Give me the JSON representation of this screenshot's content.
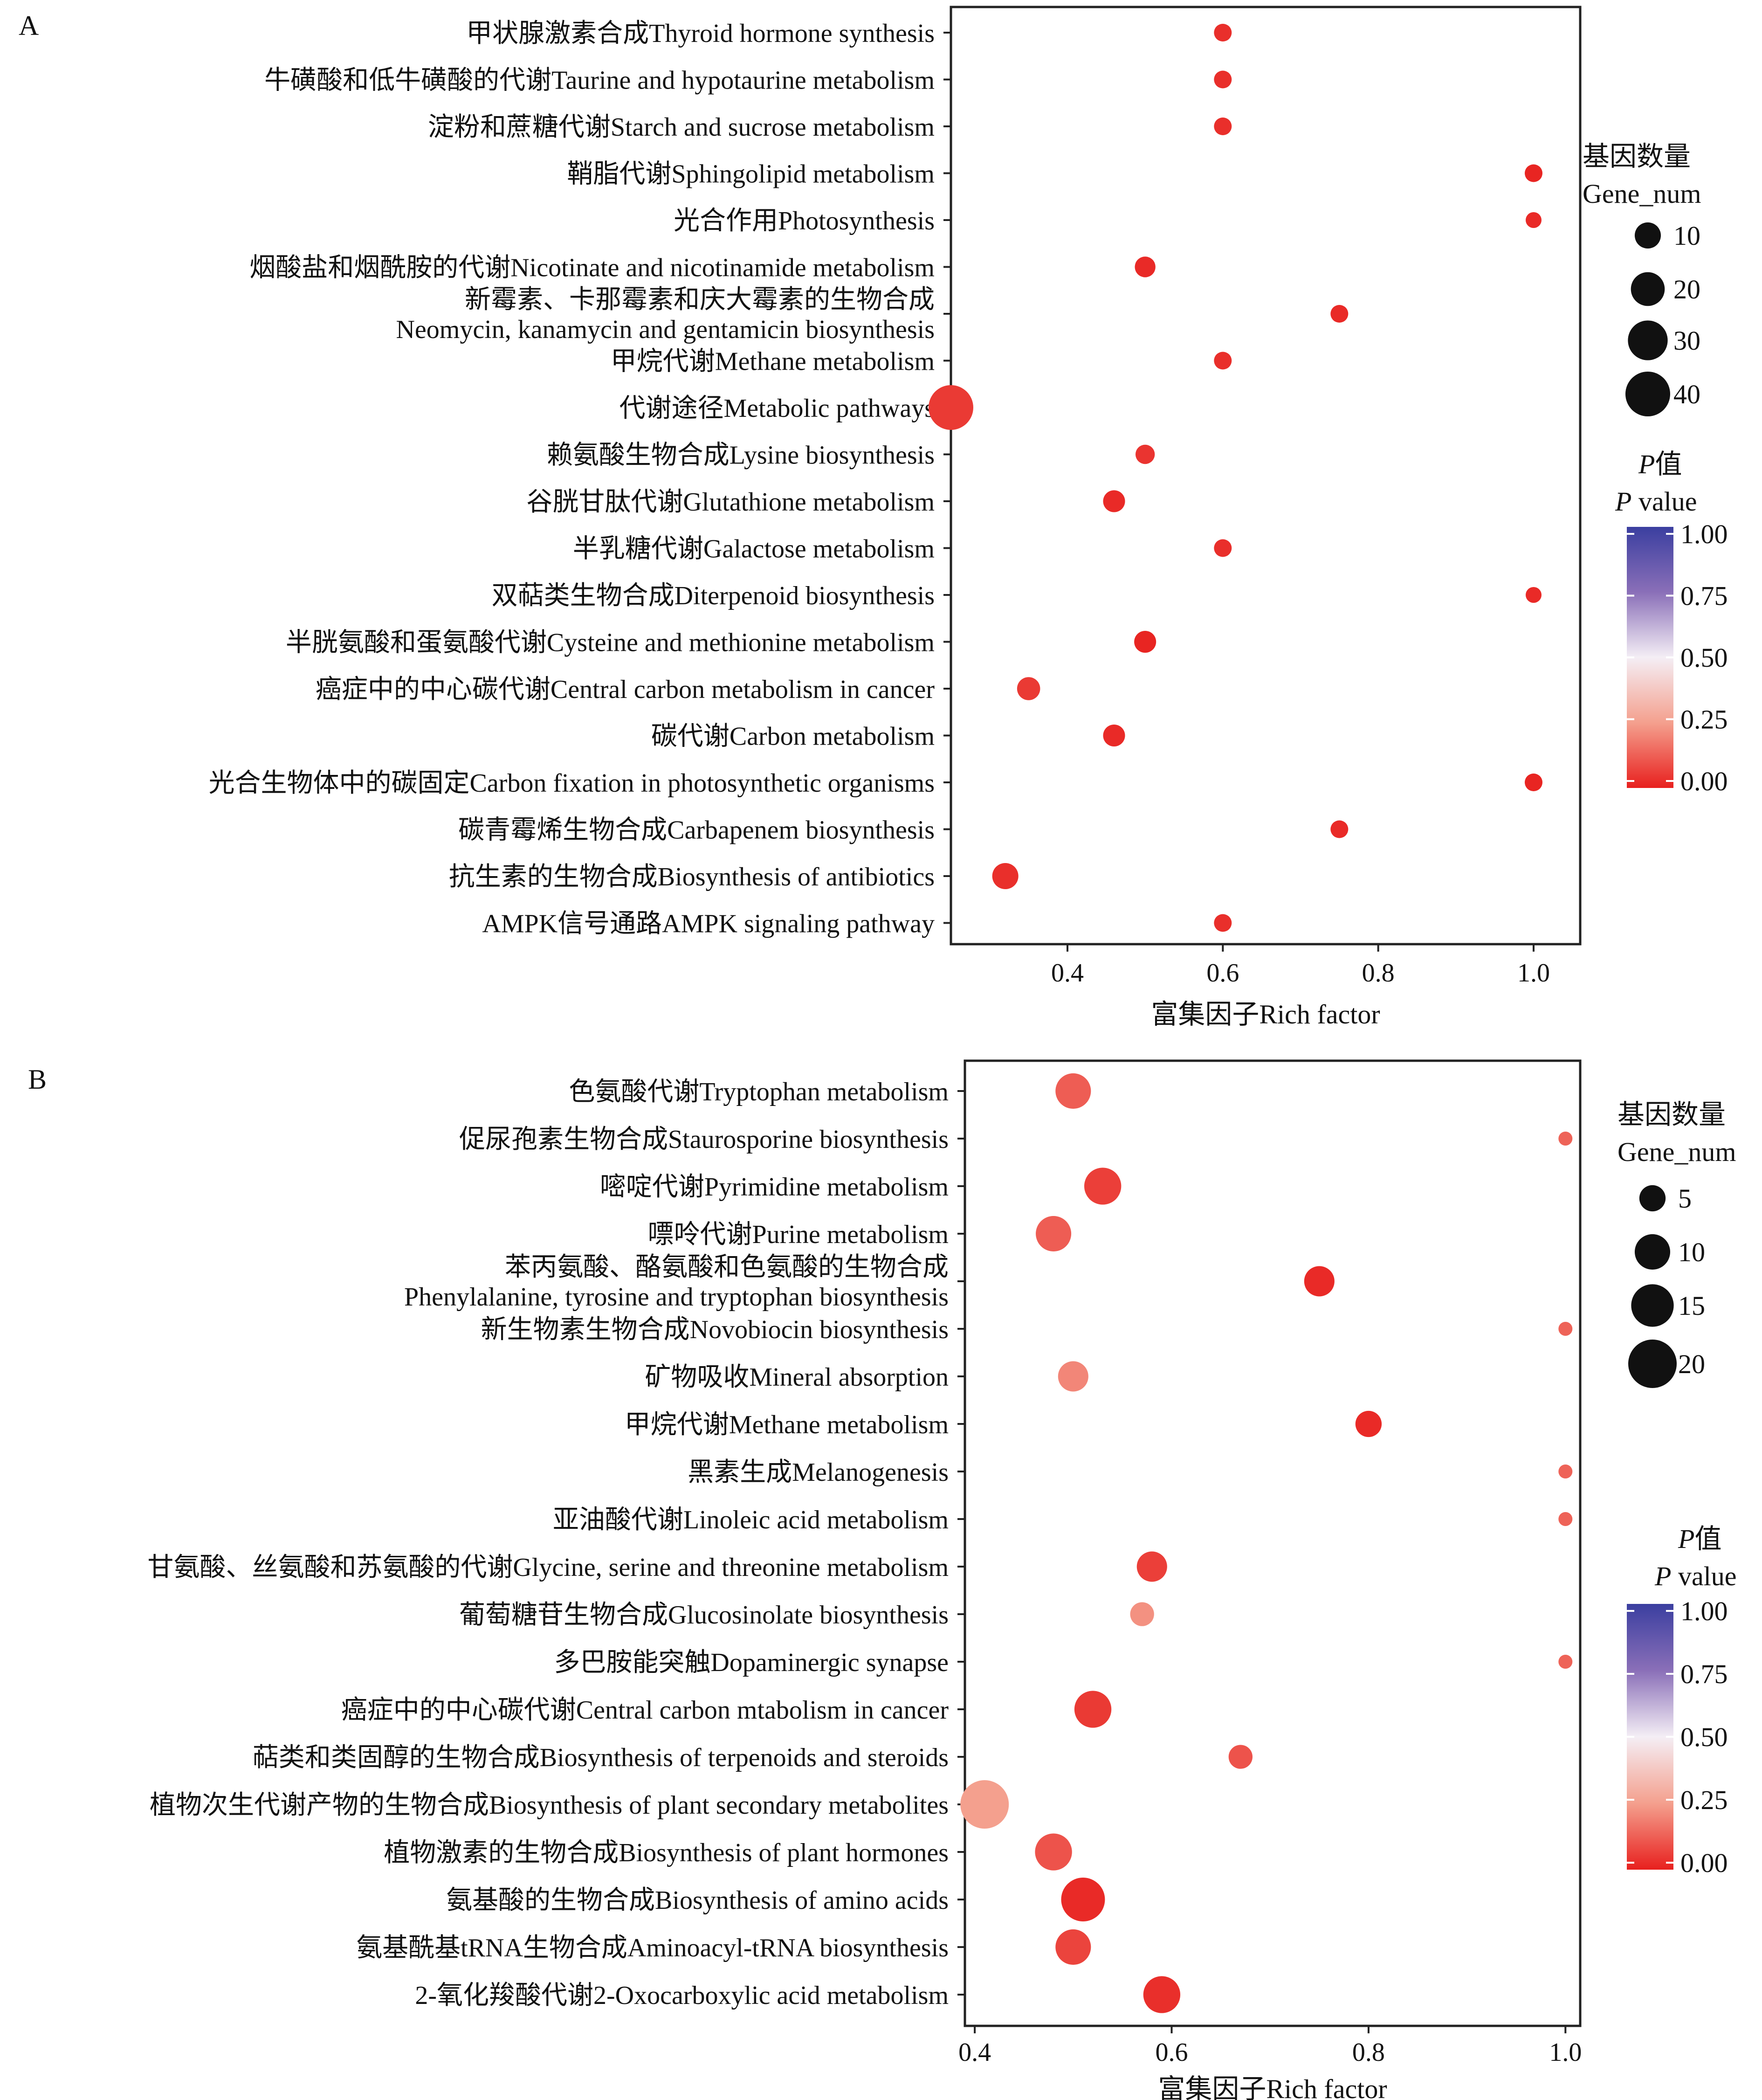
{
  "chart_data": [
    {
      "type": "scatter",
      "panel_label": "A",
      "xlabel": "富集因子Rich factor",
      "ylabel": "",
      "xlim": [
        0.25,
        1.06
      ],
      "xticks": [
        "0.4",
        "0.6",
        "0.8",
        "1.0"
      ],
      "grid": false,
      "size_legend": {
        "title_zh": "基因数量",
        "title_en": "Gene_num",
        "values": [
          "10",
          "20",
          "30",
          "40"
        ]
      },
      "color_legend": {
        "title_zh": "P值",
        "title_en_italic": "P",
        "title_en_rest": " value",
        "ticks": [
          "1.00",
          "0.75",
          "0.50",
          "0.25",
          "0.00"
        ]
      },
      "points": [
        {
          "label": "甲状腺激素合成Thyroid hormone synthesis",
          "x": 0.6,
          "gene_num": 3,
          "p": 0.03
        },
        {
          "label": "牛磺酸和低牛磺酸的代谢Taurine and hypotaurine metabolism",
          "x": 0.6,
          "gene_num": 3,
          "p": 0.03
        },
        {
          "label": "淀粉和蔗糖代谢Starch and sucrose metabolism",
          "x": 0.6,
          "gene_num": 3,
          "p": 0.03
        },
        {
          "label": "鞘脂代谢Sphingolipid metabolism",
          "x": 1.0,
          "gene_num": 3,
          "p": 0.01
        },
        {
          "label": "光合作用Photosynthesis",
          "x": 1.0,
          "gene_num": 2,
          "p": 0.02
        },
        {
          "label": "烟酸盐和烟酰胺的代谢Nicotinate and nicotinamide metabolism",
          "x": 0.5,
          "gene_num": 5,
          "p": 0.02
        },
        {
          "label": "新霉素、卡那霉素和庆大霉素的生物合成\nNeomycin, kanamycin and gentamicin biosynthesis",
          "x": 0.75,
          "gene_num": 3,
          "p": 0.02
        },
        {
          "label": "甲烷代谢Methane metabolism",
          "x": 0.6,
          "gene_num": 3,
          "p": 0.03
        },
        {
          "label": "代谢途径Metabolic pathways",
          "x": 0.25,
          "gene_num": 40,
          "p": 0.05
        },
        {
          "label": "赖氨酸生物合成Lysine biosynthesis",
          "x": 0.5,
          "gene_num": 4,
          "p": 0.04
        },
        {
          "label": "谷胱甘肽代谢Glutathione metabolism",
          "x": 0.46,
          "gene_num": 6,
          "p": 0.02
        },
        {
          "label": "半乳糖代谢Galactose metabolism",
          "x": 0.6,
          "gene_num": 3,
          "p": 0.03
        },
        {
          "label": "双萜类生物合成Diterpenoid biosynthesis",
          "x": 1.0,
          "gene_num": 2,
          "p": 0.02
        },
        {
          "label": "半胱氨酸和蛋氨酸代谢Cysteine and methionine metabolism",
          "x": 0.5,
          "gene_num": 6,
          "p": 0.01
        },
        {
          "label": "癌症中的中心碳代谢Central carbon metabolism in cancer",
          "x": 0.35,
          "gene_num": 7,
          "p": 0.05
        },
        {
          "label": "碳代谢Carbon metabolism",
          "x": 0.46,
          "gene_num": 6,
          "p": 0.02
        },
        {
          "label": "光合生物体中的碳固定Carbon fixation in photosynthetic organisms",
          "x": 1.0,
          "gene_num": 3,
          "p": 0.01
        },
        {
          "label": "碳青霉烯生物合成Carbapenem biosynthesis",
          "x": 0.75,
          "gene_num": 3,
          "p": 0.02
        },
        {
          "label": "抗生素的生物合成Biosynthesis of antibiotics",
          "x": 0.32,
          "gene_num": 10,
          "p": 0.03
        },
        {
          "label": "AMPK信号通路AMPK signaling pathway",
          "x": 0.6,
          "gene_num": 3,
          "p": 0.03
        }
      ]
    },
    {
      "type": "scatter",
      "panel_label": "B",
      "xlabel": "富集因子Rich factor",
      "ylabel": "",
      "xlim": [
        0.39,
        1.015
      ],
      "xticks": [
        "0.4",
        "0.6",
        "0.8",
        "1.0"
      ],
      "grid": false,
      "size_legend": {
        "title_zh": "基因数量",
        "title_en": "Gene_num",
        "values": [
          "5",
          "10",
          "15",
          "20"
        ]
      },
      "color_legend": {
        "title_zh": "P值",
        "title_en_italic": "P",
        "title_en_rest": " value",
        "ticks": [
          "1.00",
          "0.75",
          "0.50",
          "0.25",
          "0.00"
        ]
      },
      "points": [
        {
          "label": "色氨酸代谢Tryptophan metabolism",
          "x": 0.5,
          "gene_num": 10,
          "p": 0.12
        },
        {
          "label": "促尿孢素生物合成Staurosporine biosynthesis",
          "x": 1.0,
          "gene_num": 1,
          "p": 0.13
        },
        {
          "label": "嘧啶代谢Pyrimidine metabolism",
          "x": 0.53,
          "gene_num": 11,
          "p": 0.06
        },
        {
          "label": "嘌呤代谢Purine metabolism",
          "x": 0.48,
          "gene_num": 10,
          "p": 0.12
        },
        {
          "label": "苯丙氨酸、酪氨酸和色氨酸的生物合成\nPhenylalanine, tyrosine and tryptophan biosynthesis",
          "x": 0.75,
          "gene_num": 7,
          "p": 0.02
        },
        {
          "label": "新生物素生物合成Novobiocin biosynthesis",
          "x": 1.0,
          "gene_num": 1,
          "p": 0.13
        },
        {
          "label": "矿物吸收Mineral absorption",
          "x": 0.5,
          "gene_num": 7,
          "p": 0.2
        },
        {
          "label": "甲烷代谢Methane metabolism",
          "x": 0.8,
          "gene_num": 5,
          "p": 0.02
        },
        {
          "label": "黑素生成Melanogenesis",
          "x": 1.0,
          "gene_num": 1,
          "p": 0.13
        },
        {
          "label": "亚油酸代谢Linoleic acid metabolism",
          "x": 1.0,
          "gene_num": 1,
          "p": 0.13
        },
        {
          "label": "甘氨酸、丝氨酸和苏氨酸的代谢Glycine, serine and threonine metabolism",
          "x": 0.58,
          "gene_num": 7,
          "p": 0.06
        },
        {
          "label": "葡萄糖苷生物合成Glucosinolate biosynthesis",
          "x": 0.57,
          "gene_num": 4,
          "p": 0.22
        },
        {
          "label": "多巴胺能突触Dopaminergic synapse",
          "x": 1.0,
          "gene_num": 1,
          "p": 0.13
        },
        {
          "label": "癌症中的中心碳代谢Central carbon mtabolism in cancer",
          "x": 0.52,
          "gene_num": 11,
          "p": 0.05
        },
        {
          "label": "萜类和类固醇的生物合成Biosynthesis of terpenoids and steroids",
          "x": 0.67,
          "gene_num": 4,
          "p": 0.1
        },
        {
          "label": "植物次生代谢产物的生物合成Biosynthesis of plant secondary metabolites",
          "x": 0.41,
          "gene_num": 20,
          "p": 0.25
        },
        {
          "label": "植物激素的生物合成Biosynthesis of plant hormones",
          "x": 0.48,
          "gene_num": 11,
          "p": 0.1
        },
        {
          "label": "氨基酸的生物合成Biosynthesis of amino acids",
          "x": 0.51,
          "gene_num": 16,
          "p": 0.02
        },
        {
          "label": "氨基酰基tRNA生物合成Aminoacyl-tRNA biosynthesis",
          "x": 0.5,
          "gene_num": 10,
          "p": 0.07
        },
        {
          "label": "2-氧化羧酸代谢2-Oxocarboxylic acid metabolism",
          "x": 0.59,
          "gene_num": 11,
          "p": 0.03
        }
      ]
    }
  ]
}
